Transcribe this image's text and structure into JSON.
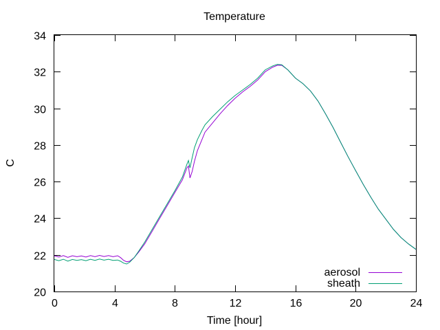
{
  "chart_data": {
    "type": "line",
    "title": "Temperature",
    "xlabel": "Time [hour]",
    "ylabel": "C",
    "xlim": [
      0,
      24
    ],
    "ylim": [
      20,
      34
    ],
    "xticks": [
      0,
      4,
      8,
      12,
      16,
      20,
      24
    ],
    "yticks": [
      20,
      22,
      24,
      26,
      28,
      30,
      32,
      34
    ],
    "grid": false,
    "legend_position": "bottom-right",
    "series": [
      {
        "name": "aerosol",
        "color": "#9400d3",
        "points": [
          [
            0,
            21.95
          ],
          [
            0.3,
            21.88
          ],
          [
            0.6,
            21.96
          ],
          [
            0.9,
            21.86
          ],
          [
            1.2,
            21.95
          ],
          [
            1.5,
            21.9
          ],
          [
            1.8,
            21.94
          ],
          [
            2.1,
            21.88
          ],
          [
            2.4,
            21.96
          ],
          [
            2.7,
            21.9
          ],
          [
            3.0,
            21.97
          ],
          [
            3.3,
            21.91
          ],
          [
            3.6,
            21.96
          ],
          [
            3.9,
            21.9
          ],
          [
            4.2,
            21.95
          ],
          [
            4.4,
            21.85
          ],
          [
            4.6,
            21.7
          ],
          [
            4.8,
            21.62
          ],
          [
            5.0,
            21.65
          ],
          [
            5.3,
            21.85
          ],
          [
            5.6,
            22.15
          ],
          [
            6.0,
            22.6
          ],
          [
            6.5,
            23.3
          ],
          [
            7.0,
            24.0
          ],
          [
            7.5,
            24.7
          ],
          [
            8.0,
            25.4
          ],
          [
            8.5,
            26.1
          ],
          [
            8.8,
            26.75
          ],
          [
            8.9,
            26.85
          ],
          [
            9.0,
            26.2
          ],
          [
            9.15,
            26.55
          ],
          [
            9.3,
            27.1
          ],
          [
            9.5,
            27.7
          ],
          [
            9.8,
            28.3
          ],
          [
            10.0,
            28.7
          ],
          [
            10.5,
            29.2
          ],
          [
            11.0,
            29.7
          ],
          [
            11.5,
            30.15
          ],
          [
            12.0,
            30.55
          ],
          [
            12.5,
            30.9
          ],
          [
            13.0,
            31.2
          ],
          [
            13.5,
            31.55
          ],
          [
            14.0,
            32.0
          ],
          [
            14.5,
            32.25
          ],
          [
            14.8,
            32.35
          ],
          [
            15.1,
            32.35
          ],
          [
            15.5,
            32.1
          ],
          [
            16.0,
            31.65
          ],
          [
            16.5,
            31.35
          ],
          [
            17.0,
            30.95
          ],
          [
            17.5,
            30.4
          ],
          [
            18.0,
            29.7
          ],
          [
            18.5,
            28.95
          ],
          [
            19.0,
            28.15
          ],
          [
            19.5,
            27.35
          ],
          [
            20.0,
            26.6
          ],
          [
            20.5,
            25.85
          ],
          [
            21.0,
            25.15
          ],
          [
            21.5,
            24.5
          ],
          [
            22.0,
            23.95
          ],
          [
            22.5,
            23.4
          ],
          [
            23.0,
            22.95
          ],
          [
            23.5,
            22.6
          ],
          [
            24.0,
            22.3
          ]
        ]
      },
      {
        "name": "sheath",
        "color": "#009e73",
        "points": [
          [
            0,
            21.75
          ],
          [
            0.3,
            21.68
          ],
          [
            0.6,
            21.76
          ],
          [
            0.9,
            21.66
          ],
          [
            1.2,
            21.75
          ],
          [
            1.5,
            21.7
          ],
          [
            1.8,
            21.74
          ],
          [
            2.1,
            21.68
          ],
          [
            2.4,
            21.76
          ],
          [
            2.7,
            21.7
          ],
          [
            3.0,
            21.77
          ],
          [
            3.3,
            21.71
          ],
          [
            3.6,
            21.76
          ],
          [
            3.9,
            21.7
          ],
          [
            4.2,
            21.72
          ],
          [
            4.4,
            21.65
          ],
          [
            4.6,
            21.55
          ],
          [
            4.8,
            21.5
          ],
          [
            5.0,
            21.6
          ],
          [
            5.3,
            21.85
          ],
          [
            5.6,
            22.2
          ],
          [
            6.0,
            22.7
          ],
          [
            6.5,
            23.4
          ],
          [
            7.0,
            24.1
          ],
          [
            7.5,
            24.8
          ],
          [
            8.0,
            25.5
          ],
          [
            8.5,
            26.25
          ],
          [
            8.8,
            26.95
          ],
          [
            8.9,
            27.15
          ],
          [
            9.0,
            26.75
          ],
          [
            9.15,
            27.3
          ],
          [
            9.3,
            27.85
          ],
          [
            9.5,
            28.3
          ],
          [
            9.8,
            28.8
          ],
          [
            10.0,
            29.1
          ],
          [
            10.5,
            29.55
          ],
          [
            11.0,
            29.95
          ],
          [
            11.5,
            30.35
          ],
          [
            12.0,
            30.7
          ],
          [
            12.5,
            31.0
          ],
          [
            13.0,
            31.3
          ],
          [
            13.5,
            31.65
          ],
          [
            14.0,
            32.1
          ],
          [
            14.5,
            32.32
          ],
          [
            14.8,
            32.4
          ],
          [
            15.1,
            32.38
          ],
          [
            15.5,
            32.1
          ],
          [
            16.0,
            31.65
          ],
          [
            16.5,
            31.35
          ],
          [
            17.0,
            30.95
          ],
          [
            17.5,
            30.4
          ],
          [
            18.0,
            29.7
          ],
          [
            18.5,
            28.95
          ],
          [
            19.0,
            28.15
          ],
          [
            19.5,
            27.35
          ],
          [
            20.0,
            26.6
          ],
          [
            20.5,
            25.85
          ],
          [
            21.0,
            25.15
          ],
          [
            21.5,
            24.5
          ],
          [
            22.0,
            23.95
          ],
          [
            22.5,
            23.4
          ],
          [
            23.0,
            22.95
          ],
          [
            23.5,
            22.6
          ],
          [
            24.0,
            22.3
          ]
        ]
      }
    ]
  }
}
